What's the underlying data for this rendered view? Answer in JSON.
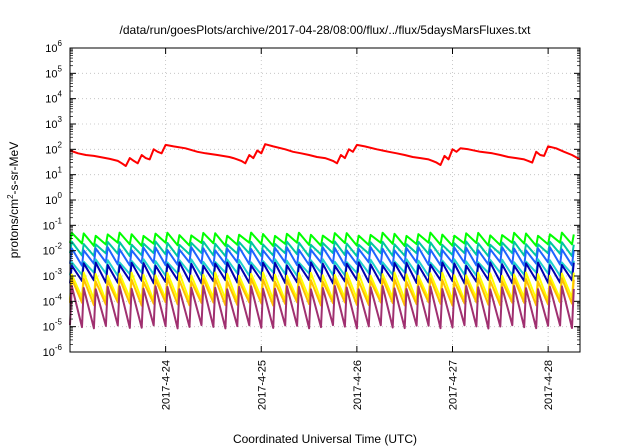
{
  "chart_data": {
    "type": "line",
    "title": "/data/run/goesPlots/archive/2017-04-28/08:00/flux/../flux/5daysMarsFluxes.txt",
    "xlabel": "Coordinated Universal Time (UTC)",
    "ylabel_parts": [
      "protons/cm",
      "2",
      "-s-sr-MeV"
    ],
    "y_scale": "log",
    "ylim": [
      1e-06,
      1000000.0
    ],
    "y_tick_exponents": [
      "-6",
      "-5",
      "-4",
      "-3",
      "-2",
      "-1",
      "0",
      "1",
      "2",
      "3",
      "4",
      "5",
      "6"
    ],
    "x_range": [
      "2017-04-23T00:00",
      "2017-04-28T08:00"
    ],
    "x_ticks": [
      {
        "date": "2017-04-24",
        "label": "2017-4-24"
      },
      {
        "date": "2017-04-25",
        "label": "2017-4-25"
      },
      {
        "date": "2017-04-26",
        "label": "2017-4-26"
      },
      {
        "date": "2017-04-27",
        "label": "2017-4-27"
      },
      {
        "date": "2017-04-28",
        "label": "2017-4-28"
      }
    ],
    "grid": true,
    "series": [
      {
        "color": "#ff0000",
        "points": [
          [
            "2017-04-23T00:00",
            90
          ],
          [
            "2017-04-23T02:00",
            70
          ],
          [
            "2017-04-23T04:00",
            60
          ],
          [
            "2017-04-23T06:00",
            55
          ],
          [
            "2017-04-23T08:00",
            48
          ],
          [
            "2017-04-23T10:00",
            42
          ],
          [
            "2017-04-23T12:00",
            35
          ],
          [
            "2017-04-23T13:00",
            28
          ],
          [
            "2017-04-23T14:00",
            22
          ],
          [
            "2017-04-23T15:00",
            45
          ],
          [
            "2017-04-23T16:00",
            35
          ],
          [
            "2017-04-23T17:00",
            28
          ],
          [
            "2017-04-23T18:00",
            60
          ],
          [
            "2017-04-23T19:00",
            45
          ],
          [
            "2017-04-23T20:00",
            40
          ],
          [
            "2017-04-23T21:00",
            100
          ],
          [
            "2017-04-23T22:00",
            80
          ],
          [
            "2017-04-23T23:00",
            70
          ],
          [
            "2017-04-24T00:00",
            150
          ],
          [
            "2017-04-24T02:00",
            130
          ],
          [
            "2017-04-24T05:00",
            110
          ],
          [
            "2017-04-24T08:00",
            80
          ],
          [
            "2017-04-24T10:00",
            70
          ],
          [
            "2017-04-24T13:00",
            60
          ],
          [
            "2017-04-24T16:00",
            50
          ],
          [
            "2017-04-24T17:00",
            45
          ],
          [
            "2017-04-24T18:00",
            40
          ],
          [
            "2017-04-24T19:00",
            35
          ],
          [
            "2017-04-24T20:00",
            28
          ],
          [
            "2017-04-24T21:00",
            60
          ],
          [
            "2017-04-24T22:00",
            45
          ],
          [
            "2017-04-24T23:00",
            90
          ],
          [
            "2017-04-25T00:00",
            70
          ],
          [
            "2017-04-25T01:00",
            160
          ],
          [
            "2017-04-25T03:00",
            130
          ],
          [
            "2017-04-25T06:00",
            100
          ],
          [
            "2017-04-25T08:00",
            80
          ],
          [
            "2017-04-25T10:00",
            70
          ],
          [
            "2017-04-25T12:00",
            60
          ],
          [
            "2017-04-25T14:00",
            50
          ],
          [
            "2017-04-25T16:00",
            45
          ],
          [
            "2017-04-25T17:00",
            40
          ],
          [
            "2017-04-25T18:00",
            35
          ],
          [
            "2017-04-25T19:00",
            28
          ],
          [
            "2017-04-25T20:00",
            60
          ],
          [
            "2017-04-25T21:00",
            45
          ],
          [
            "2017-04-25T22:00",
            100
          ],
          [
            "2017-04-25T23:00",
            80
          ],
          [
            "2017-04-26T00:00",
            150
          ],
          [
            "2017-04-26T02:00",
            130
          ],
          [
            "2017-04-26T05:00",
            100
          ],
          [
            "2017-04-26T08:00",
            80
          ],
          [
            "2017-04-26T10:00",
            70
          ],
          [
            "2017-04-26T12:00",
            60
          ],
          [
            "2017-04-26T14:00",
            50
          ],
          [
            "2017-04-26T16:00",
            45
          ],
          [
            "2017-04-26T18:00",
            40
          ],
          [
            "2017-04-26T19:00",
            35
          ],
          [
            "2017-04-26T20:00",
            30
          ],
          [
            "2017-04-26T21:00",
            24
          ],
          [
            "2017-04-26T22:00",
            55
          ],
          [
            "2017-04-26T23:00",
            40
          ],
          [
            "2017-04-27T00:00",
            100
          ],
          [
            "2017-04-27T01:00",
            80
          ],
          [
            "2017-04-27T02:00",
            110
          ],
          [
            "2017-04-27T04:00",
            100
          ],
          [
            "2017-04-27T07:00",
            80
          ],
          [
            "2017-04-27T10:00",
            70
          ],
          [
            "2017-04-27T12:00",
            60
          ],
          [
            "2017-04-27T14:00",
            50
          ],
          [
            "2017-04-27T16:00",
            45
          ],
          [
            "2017-04-27T18:00",
            40
          ],
          [
            "2017-04-27T19:00",
            35
          ],
          [
            "2017-04-27T20:00",
            30
          ],
          [
            "2017-04-27T21:00",
            80
          ],
          [
            "2017-04-27T22:00",
            60
          ],
          [
            "2017-04-27T23:00",
            55
          ],
          [
            "2017-04-28T00:00",
            130
          ],
          [
            "2017-04-28T02:00",
            110
          ],
          [
            "2017-04-28T04:00",
            80
          ],
          [
            "2017-04-28T06:00",
            60
          ],
          [
            "2017-04-28T08:00",
            40
          ]
        ]
      },
      {
        "color": "#00ff00",
        "sawtooth": {
          "start": "2017-04-23T00:00",
          "end": "2017-04-28T08:00",
          "period_hours": 3,
          "high": 0.045,
          "low": 0.018
        }
      },
      {
        "color": "#00c8a0",
        "sawtooth": {
          "start": "2017-04-23T00:00",
          "end": "2017-04-28T08:00",
          "period_hours": 3,
          "high": 0.02,
          "low": 0.007
        }
      },
      {
        "color": "#1e64ff",
        "sawtooth": {
          "start": "2017-04-23T00:00",
          "end": "2017-04-28T08:00",
          "period_hours": 3,
          "high": 0.012,
          "low": 0.003
        }
      },
      {
        "color": "#20d0d0",
        "sawtooth": {
          "start": "2017-04-23T00:00",
          "end": "2017-04-28T08:00",
          "period_hours": 3,
          "high": 0.004,
          "low": 0.0012
        }
      },
      {
        "color": "#0000b0",
        "sawtooth": {
          "start": "2017-04-23T00:00",
          "end": "2017-04-28T08:00",
          "period_hours": 3,
          "high": 0.003,
          "low": 0.0006
        }
      },
      {
        "color": "#ffff00",
        "sawtooth": {
          "start": "2017-04-23T00:00",
          "end": "2017-04-28T08:00",
          "period_hours": 3,
          "high": 0.0012,
          "low": 0.00012
        }
      },
      {
        "color": "#ffc000",
        "sawtooth": {
          "start": "2017-04-23T00:00",
          "end": "2017-04-28T08:00",
          "period_hours": 3,
          "high": 0.0007,
          "low": 8e-05
        }
      },
      {
        "color": "#a03070",
        "sawtooth": {
          "start": "2017-04-23T00:00",
          "end": "2017-04-28T08:00",
          "period_hours": 3,
          "high": 0.00035,
          "low": 1e-05
        }
      }
    ]
  }
}
